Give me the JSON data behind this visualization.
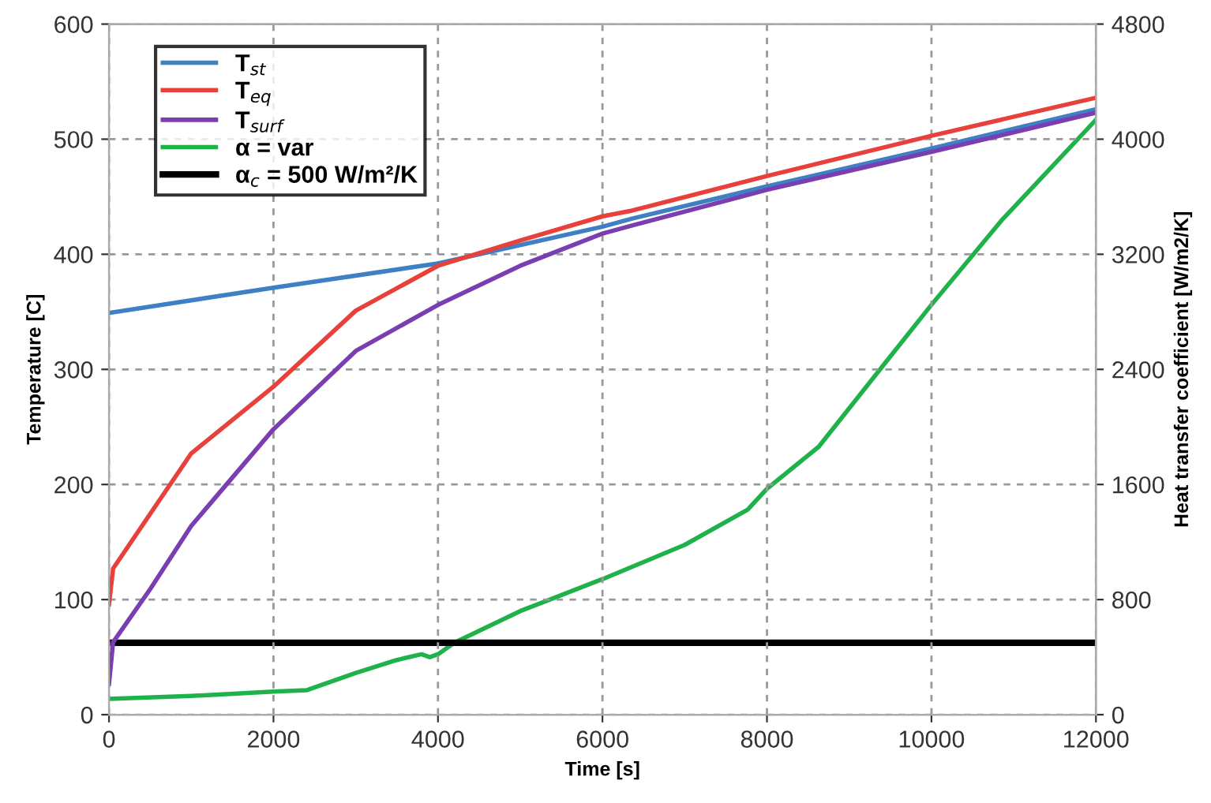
{
  "chart_data": {
    "type": "line",
    "xlabel": "Time [s]",
    "ylabel": "Temperature [C]",
    "y2label": "Heat transfer coefficient [W/m2/K]",
    "xlim": [
      0,
      12000
    ],
    "xticks": [
      0,
      2000,
      4000,
      6000,
      8000,
      10000,
      12000
    ],
    "ylim": [
      0,
      600
    ],
    "yticks": [
      0,
      100,
      200,
      300,
      400,
      500,
      600
    ],
    "y2lim": [
      0,
      4800
    ],
    "y2ticks": [
      0,
      800,
      1600,
      2400,
      3200,
      4000,
      4800
    ],
    "grid": true,
    "legend": "top left",
    "line_style": "solid",
    "marker": "none",
    "series": [
      {
        "name": "T$_{st}$",
        "color": "#3f7fc4",
        "x": [
          0,
          2000,
          4000,
          6000,
          6360,
          8000,
          10000,
          12000
        ],
        "values": [
          349,
          371,
          392,
          424,
          431,
          459,
          492,
          526
        ]
      },
      {
        "name": "T$_{eq}$",
        "color": "#e8413c",
        "x": [
          0,
          50,
          1000,
          2000,
          3000,
          4000,
          5000,
          6000,
          6360,
          8000,
          10000,
          12000
        ],
        "values": [
          96,
          127,
          227,
          285,
          351,
          390,
          412,
          433,
          438,
          468,
          503,
          536
        ]
      },
      {
        "name": "T$_{surf}$",
        "color": "#7a3eb1",
        "x": [
          0,
          50,
          500,
          1000,
          2000,
          3000,
          4000,
          5000,
          6000,
          6360,
          8000,
          10000,
          12000
        ],
        "values": [
          27,
          63,
          109,
          164,
          248,
          316,
          356,
          390,
          418,
          425,
          456,
          489,
          523
        ]
      },
      {
        "name": "α = var",
        "color": "#1fb24a",
        "axis": "y2",
        "x": [
          0,
          1000,
          2000,
          2400,
          3000,
          3500,
          3800,
          3900,
          4000,
          4200,
          5000,
          6000,
          7000,
          7765,
          8000,
          8630,
          9440,
          10000,
          10850,
          12000
        ],
        "values": [
          110,
          130,
          160,
          170,
          290,
          380,
          420,
          400,
          420,
          500,
          720,
          942,
          1180,
          1425,
          1570,
          1863,
          2447,
          2849,
          3434,
          4135
        ]
      },
      {
        "name": "α$_{c}$ = 500 W/m²/K",
        "color": "#000000",
        "axis": "y2",
        "x": [
          0,
          12000
        ],
        "values": [
          500,
          500
        ]
      }
    ]
  }
}
